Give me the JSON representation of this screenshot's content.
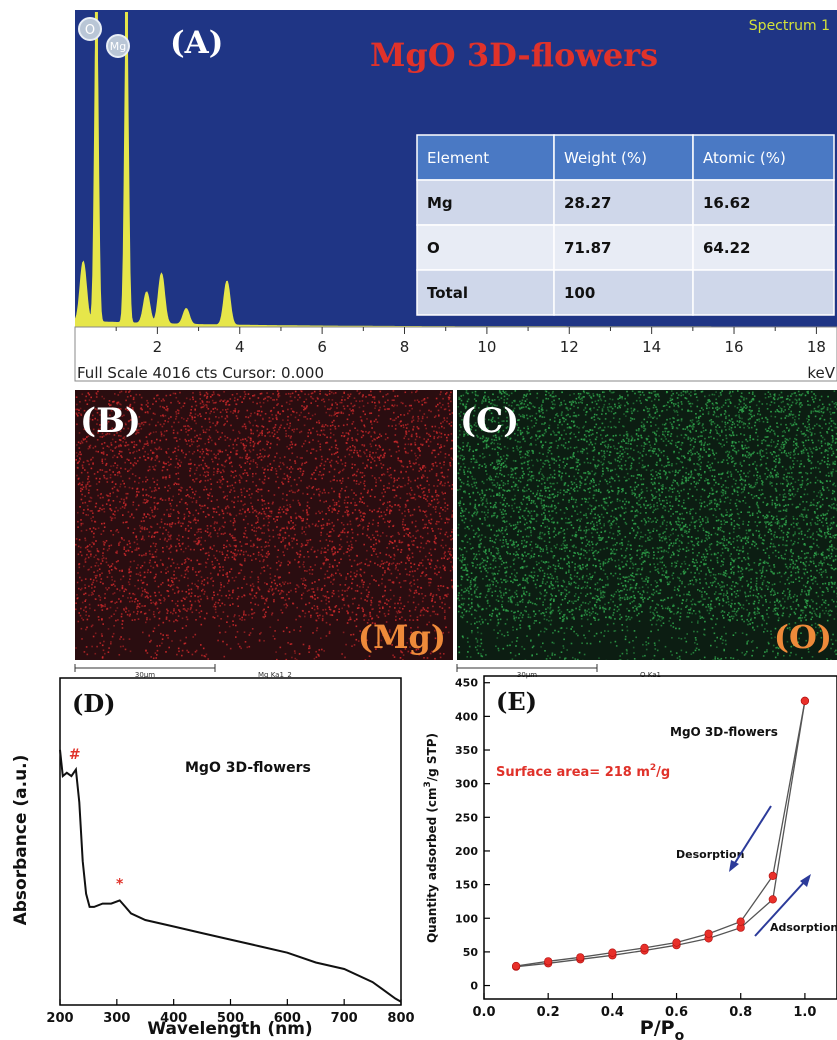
{
  "panelA": {
    "label": "(A)",
    "title": "MgO 3D-flowers",
    "spectrum": "Spectrum 1",
    "element_badges": [
      "O",
      "Mg"
    ],
    "footer_text": "Full Scale 4016 cts Cursor: 0.000",
    "unit": "keV",
    "table": {
      "headers": [
        "Element",
        "Weight (%)",
        "Atomic (%)"
      ],
      "rows": [
        [
          "Mg",
          "28.27",
          "16.62"
        ],
        [
          "O",
          "71.87",
          "64.22"
        ],
        [
          "Total",
          "100",
          ""
        ]
      ]
    },
    "colors": {
      "background": "#1f3585",
      "trace": "#e6e64a",
      "title": "#e0322a",
      "spectrum": "#d4e23a"
    }
  },
  "panelB": {
    "label": "(B)",
    "element": "(Mg)",
    "scalebar": "30µm",
    "caption": "Mg Ka1_2",
    "dot_color": "#c8282a"
  },
  "panelC": {
    "label": "(C)",
    "element": "(O)",
    "scalebar": "30µm",
    "caption": "O Ka1",
    "dot_color": "#2fa24a"
  },
  "panelD": {
    "label": "(D)",
    "annotation": "MgO 3D-flowers",
    "markers": [
      "#",
      "*"
    ]
  },
  "panelE": {
    "label": "(E)",
    "annotation": "MgO 3D-flowers",
    "surface_area_prefix": "Surface area= 218 m",
    "surface_area_sup": "2",
    "surface_area_suffix": "/g",
    "desorption": "Desorption",
    "adsorption": "Adsorption"
  },
  "chart_data": [
    {
      "panel": "A",
      "type": "line",
      "title": "MgO 3D-flowers",
      "xlabel": "keV",
      "x_ticks": [
        2,
        4,
        6,
        8,
        10,
        12,
        14,
        16,
        18
      ],
      "xlim": [
        0,
        18.5
      ],
      "peaks": [
        {
          "x": 0.2,
          "y": 0.19,
          "label": ""
        },
        {
          "x": 0.52,
          "y": 1.0,
          "label": "O"
        },
        {
          "x": 1.25,
          "y": 1.0,
          "label": "Mg"
        },
        {
          "x": 1.74,
          "y": 0.1,
          "label": ""
        },
        {
          "x": 2.1,
          "y": 0.16,
          "label": ""
        },
        {
          "x": 2.7,
          "y": 0.05,
          "label": ""
        },
        {
          "x": 3.69,
          "y": 0.14,
          "label": ""
        }
      ]
    },
    {
      "panel": "D",
      "type": "line",
      "xlabel": "Wavelength (nm)",
      "ylabel": "Absorbance (a.u.)",
      "xlim": [
        200,
        800
      ],
      "x_ticks": [
        200,
        300,
        400,
        500,
        600,
        700,
        800
      ],
      "x": [
        200,
        205,
        212,
        220,
        228,
        234,
        240,
        246,
        252,
        260,
        275,
        290,
        305,
        315,
        325,
        350,
        400,
        450,
        500,
        550,
        600,
        650,
        700,
        750,
        790,
        800
      ],
      "y": [
        0.78,
        0.7,
        0.71,
        0.7,
        0.72,
        0.62,
        0.44,
        0.34,
        0.3,
        0.3,
        0.31,
        0.31,
        0.32,
        0.3,
        0.28,
        0.26,
        0.24,
        0.22,
        0.2,
        0.18,
        0.16,
        0.13,
        0.11,
        0.07,
        0.02,
        0.01
      ],
      "markers": [
        {
          "label": "#",
          "x": 226
        },
        {
          "label": "*",
          "x": 305
        }
      ]
    },
    {
      "panel": "E",
      "type": "scatter",
      "xlabel": "P/P",
      "xlabel_sub": "o",
      "ylabel": "Quantity adsorbed (cm",
      "ylabel_sup": "3",
      "ylabel_suffix": "/g STP)",
      "xlim": [
        0,
        1.1
      ],
      "ylim": [
        -20,
        460
      ],
      "x_ticks": [
        0.0,
        0.2,
        0.4,
        0.6,
        0.8,
        1.0
      ],
      "y_ticks": [
        0,
        50,
        100,
        150,
        200,
        250,
        300,
        350,
        400,
        450
      ],
      "series": [
        {
          "name": "Adsorption",
          "x": [
            0.1,
            0.2,
            0.3,
            0.4,
            0.5,
            0.6,
            0.7,
            0.8,
            0.9,
            1.0
          ],
          "y": [
            28,
            33,
            39,
            45,
            52,
            60,
            70,
            86,
            128,
            423
          ]
        },
        {
          "name": "Desorption",
          "x": [
            1.0,
            0.9,
            0.8,
            0.7,
            0.6,
            0.5,
            0.4,
            0.3,
            0.2,
            0.1
          ],
          "y": [
            423,
            163,
            95,
            77,
            64,
            56,
            49,
            42,
            36,
            29
          ]
        }
      ]
    }
  ]
}
